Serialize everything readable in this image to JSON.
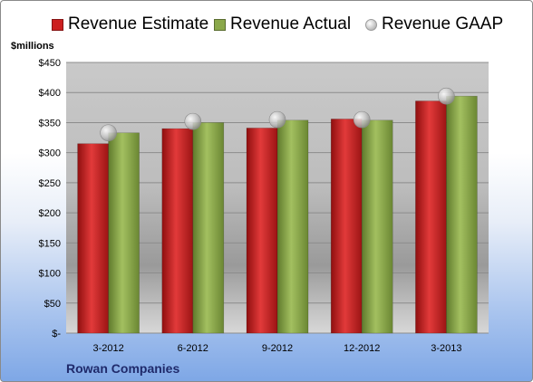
{
  "legend": {
    "estimate": "Revenue Estimate",
    "actual": "Revenue Actual",
    "gaap": "Revenue GAAP"
  },
  "ylabel": "$millions",
  "company": "Rowan Companies",
  "colors": {
    "estimate": "#cc1f1f",
    "actual": "#8aa84a",
    "gaap": "#b8b8b8"
  },
  "chart_data": {
    "type": "bar",
    "categories": [
      "3-2012",
      "6-2012",
      "9-2012",
      "12-2012",
      "3-2013"
    ],
    "series": [
      {
        "name": "Revenue Estimate",
        "values": [
          315,
          340,
          341,
          356,
          386
        ]
      },
      {
        "name": "Revenue Actual",
        "values": [
          333,
          350,
          354,
          354,
          394
        ]
      },
      {
        "name": "Revenue GAAP",
        "values": [
          333,
          352,
          355,
          355,
          394
        ]
      }
    ],
    "ylabel": "$millions",
    "ylim": [
      0,
      450
    ],
    "yticks": [
      0,
      50,
      100,
      150,
      200,
      250,
      300,
      350,
      400,
      450
    ],
    "ytick_labels": [
      "$-",
      "$50",
      "$100",
      "$150",
      "$200",
      "$250",
      "$300",
      "$350",
      "$400",
      "$450"
    ],
    "grid": true,
    "legend_position": "top"
  }
}
